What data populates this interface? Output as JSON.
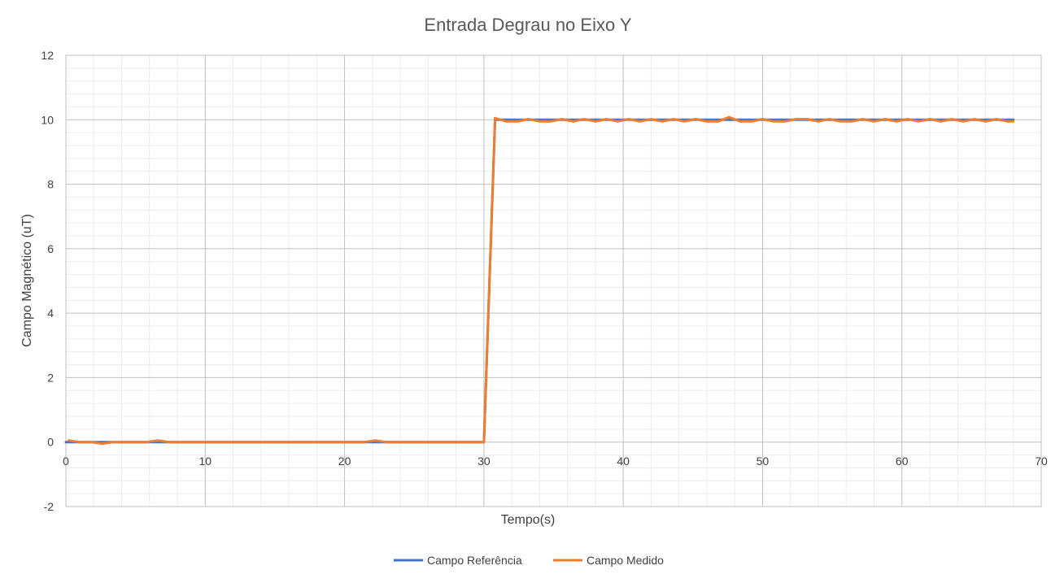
{
  "chart_data": {
    "type": "line",
    "title": "Entrada Degrau no Eixo Y",
    "xlabel": "Tempo(s)",
    "ylabel": "Campo Magnético (uT)",
    "xlim": [
      0,
      70
    ],
    "ylim": [
      -2,
      12
    ],
    "xticks": [
      "0",
      "10",
      "20",
      "30",
      "40",
      "50",
      "60",
      "70"
    ],
    "yticks": [
      "-2",
      "0",
      "2",
      "4",
      "6",
      "8",
      "10",
      "12"
    ],
    "grid": true,
    "legend_position": "bottom",
    "series": [
      {
        "name": "Campo Referência",
        "color": "#4472C4",
        "x": [
          0,
          30,
          30.8,
          68
        ],
        "y": [
          0,
          0,
          10,
          10
        ]
      },
      {
        "name": "Campo Medido",
        "color": "#ED7D31",
        "x": [
          0.2,
          1.0,
          1.8,
          2.6,
          3.4,
          4.2,
          5.0,
          5.8,
          6.6,
          7.4,
          8.2,
          9.0,
          15.0,
          21.4,
          22.2,
          23.0,
          29.0,
          30.0,
          30.8,
          31.6,
          32.4,
          33.2,
          34.0,
          34.8,
          35.6,
          36.4,
          37.2,
          38.0,
          38.8,
          39.6,
          40.4,
          41.2,
          42.0,
          42.8,
          43.6,
          44.4,
          45.2,
          46.0,
          46.8,
          47.6,
          48.4,
          49.2,
          50.0,
          50.8,
          51.6,
          52.4,
          53.2,
          54.0,
          54.8,
          55.6,
          56.4,
          57.2,
          58.0,
          58.8,
          59.6,
          60.4,
          61.2,
          62.0,
          62.8,
          63.6,
          64.4,
          65.2,
          66.0,
          66.8,
          67.6,
          68.0
        ],
        "y": [
          0.05,
          0.0,
          0.0,
          -0.05,
          0.0,
          0.0,
          0.0,
          0.0,
          0.05,
          0.0,
          0.0,
          0.0,
          0.0,
          0.0,
          0.05,
          0.0,
          0.0,
          0.0,
          10.05,
          9.95,
          9.95,
          10.02,
          9.95,
          9.95,
          10.02,
          9.95,
          10.02,
          9.95,
          10.02,
          9.95,
          10.02,
          9.95,
          10.02,
          9.95,
          10.02,
          9.95,
          10.02,
          9.95,
          9.95,
          10.08,
          9.95,
          9.95,
          10.02,
          9.95,
          9.95,
          10.02,
          10.02,
          9.95,
          10.02,
          9.95,
          9.95,
          10.02,
          9.95,
          10.02,
          9.95,
          10.02,
          9.95,
          10.02,
          9.95,
          10.02,
          9.95,
          10.02,
          9.95,
          10.02,
          9.95,
          9.95
        ]
      }
    ]
  }
}
